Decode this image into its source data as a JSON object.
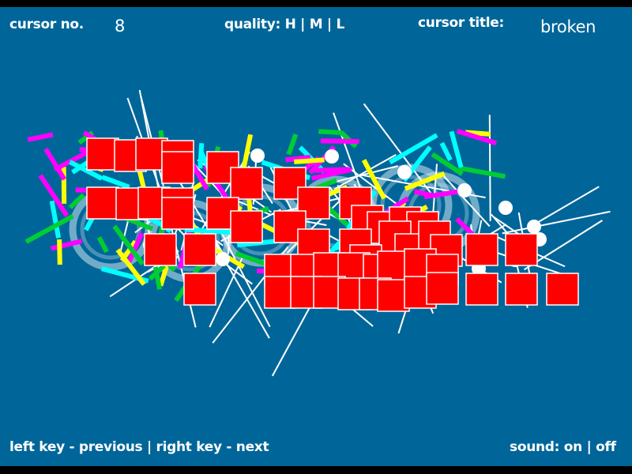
{
  "header": {
    "cursor_no_label": "cursor no.",
    "cursor_no_value": "8",
    "quality_label": "quality: H | M | L",
    "cursor_title_label": "cursor title:",
    "cursor_title_value": "broken"
  },
  "footer": {
    "navigation_hint": "left key - previous  |  right key - next",
    "sound_label": "sound: on | off"
  },
  "colors": {
    "background": "#006699",
    "square_fill": "#ff0000",
    "stroke_colors": [
      "#00ffff",
      "#00cc33",
      "#ffff00",
      "#ff00ff",
      "#ffffff"
    ]
  }
}
